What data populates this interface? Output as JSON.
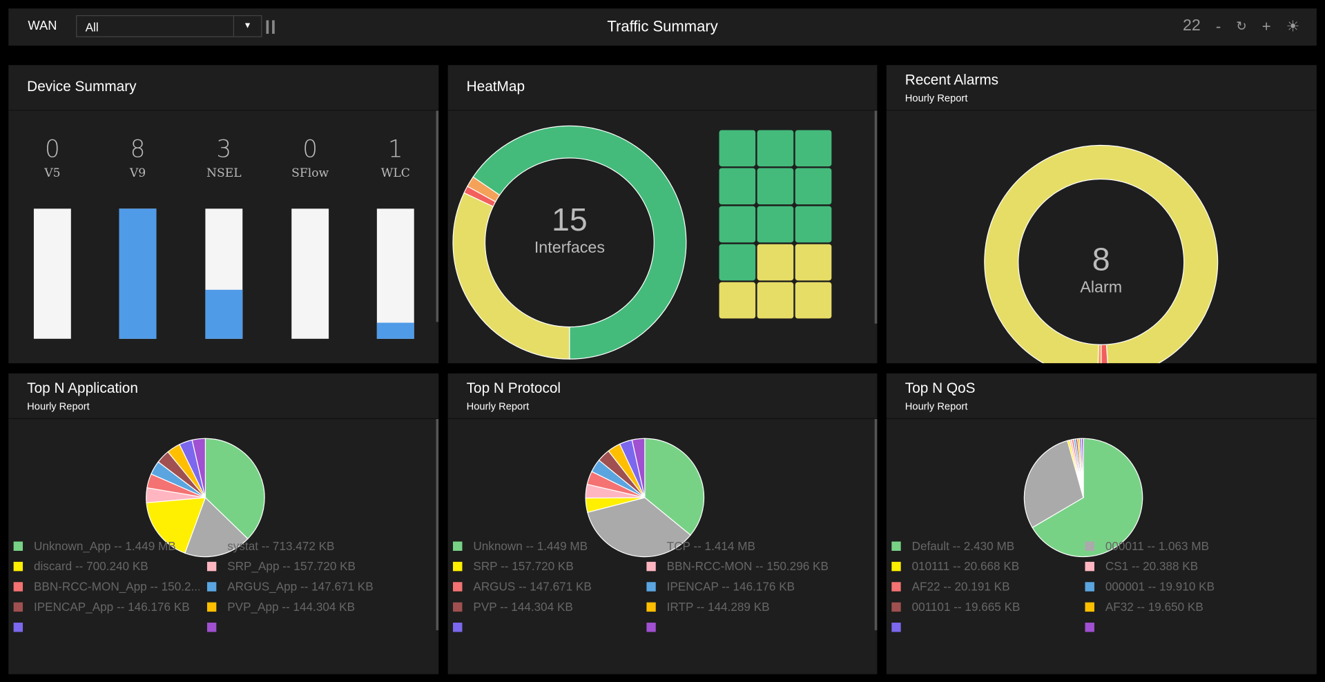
{
  "header": {
    "filter_label": "WAN",
    "filter_value": "All",
    "title": "Traffic Summary",
    "refresh_interval": "22",
    "minus": "-",
    "plus": "+"
  },
  "device_summary": {
    "title": "Device Summary",
    "items": [
      {
        "label": "V5",
        "count": "0",
        "fill": 0
      },
      {
        "label": "V9",
        "count": "8",
        "fill": 1
      },
      {
        "label": "NSEL",
        "count": "3",
        "fill": 0.375
      },
      {
        "label": "SFlow",
        "count": "0",
        "fill": 0
      },
      {
        "label": "WLC",
        "count": "1",
        "fill": 0.125
      }
    ]
  },
  "heatmap": {
    "title": "HeatMap",
    "count": "15",
    "count_label": "Interfaces",
    "donut": [
      {
        "status": "yellow",
        "fraction": 0.32,
        "color": "#e6dd66"
      },
      {
        "status": "red",
        "fraction": 0.01,
        "color": "#f25f5c"
      },
      {
        "status": "orange",
        "fraction": 0.015,
        "color": "#f4a259"
      },
      {
        "status": "green",
        "fraction": 0.655,
        "color": "#44bb7b"
      }
    ],
    "cells": [
      "green",
      "green",
      "green",
      "green",
      "green",
      "green",
      "green",
      "green",
      "green",
      "green",
      "yellow",
      "yellow",
      "yellow",
      "yellow",
      "yellow"
    ],
    "colors": {
      "green": "#44bb7b",
      "yellow": "#e6dd66"
    }
  },
  "alarms": {
    "title": "Recent Alarms",
    "subtitle": "Hourly Report",
    "count": "8",
    "count_label": "Alarm",
    "donut": [
      {
        "status": "warning",
        "fraction": 0.985,
        "color": "#e6dd66"
      },
      {
        "status": "critical",
        "fraction": 0.01,
        "color": "#f25f5c"
      },
      {
        "status": "major",
        "fraction": 0.005,
        "color": "#f4a259"
      }
    ]
  },
  "chart_data": [
    {
      "type": "pie",
      "title": "Top N Application",
      "subtitle": "Hourly Report",
      "slices": [
        {
          "label": "Unknown_App -- 1.449 MB",
          "value": 1449,
          "color": "#78d286"
        },
        {
          "label": "systat -- 713.472 KB",
          "value": 713.472,
          "color": "#aaaaaa"
        },
        {
          "label": "discard -- 700.240 KB",
          "value": 700.24,
          "color": "#ffef00"
        },
        {
          "label": "SRP_App -- 157.720 KB",
          "value": 157.72,
          "color": "#ffb6c1"
        },
        {
          "label": "BBN-RCC-MON_App -- 150.2...",
          "value": 150.2,
          "color": "#f47272"
        },
        {
          "label": "ARGUS_App -- 147.671 KB",
          "value": 147.671,
          "color": "#5aa5e0"
        },
        {
          "label": "IPENCAP_App -- 146.176 KB",
          "value": 146.176,
          "color": "#a05050"
        },
        {
          "label": "PVP_App -- 144.304 KB",
          "value": 144.304,
          "color": "#ffbf00"
        },
        {
          "label": "",
          "value": 140,
          "color": "#7b68ee"
        },
        {
          "label": "",
          "value": 140,
          "color": "#a050d0"
        }
      ]
    },
    {
      "type": "pie",
      "title": "Top N Protocol",
      "subtitle": "Hourly Report",
      "slices": [
        {
          "label": "Unknown -- 1.449 MB",
          "value": 1449,
          "color": "#78d286"
        },
        {
          "label": "TCP -- 1.414 MB",
          "value": 1414,
          "color": "#aaaaaa"
        },
        {
          "label": "SRP -- 157.720 KB",
          "value": 157.72,
          "color": "#ffef00"
        },
        {
          "label": "BBN-RCC-MON -- 150.296 KB",
          "value": 150.296,
          "color": "#ffb6c1"
        },
        {
          "label": "ARGUS -- 147.671 KB",
          "value": 147.671,
          "color": "#f47272"
        },
        {
          "label": "IPENCAP -- 146.176 KB",
          "value": 146.176,
          "color": "#5aa5e0"
        },
        {
          "label": "PVP -- 144.304 KB",
          "value": 144.304,
          "color": "#a05050"
        },
        {
          "label": "IRTP -- 144.289 KB",
          "value": 144.289,
          "color": "#ffbf00"
        },
        {
          "label": "",
          "value": 140,
          "color": "#7b68ee"
        },
        {
          "label": "",
          "value": 140,
          "color": "#a050d0"
        }
      ]
    },
    {
      "type": "pie",
      "title": "Top N QoS",
      "subtitle": "Hourly Report",
      "slices": [
        {
          "label": "Default -- 2.430 MB",
          "value": 2430,
          "color": "#78d286"
        },
        {
          "label": "000011 -- 1.063 MB",
          "value": 1063,
          "color": "#aaaaaa"
        },
        {
          "label": "010111 -- 20.668 KB",
          "value": 20.668,
          "color": "#ffef00"
        },
        {
          "label": "CS1 -- 20.388 KB",
          "value": 20.388,
          "color": "#ffb6c1"
        },
        {
          "label": "AF22 -- 20.191 KB",
          "value": 20.191,
          "color": "#f47272"
        },
        {
          "label": "000001 -- 19.910 KB",
          "value": 19.91,
          "color": "#5aa5e0"
        },
        {
          "label": "001101 -- 19.665 KB",
          "value": 19.665,
          "color": "#a05050"
        },
        {
          "label": "AF32 -- 19.650 KB",
          "value": 19.65,
          "color": "#ffbf00"
        },
        {
          "label": "",
          "value": 19,
          "color": "#7b68ee"
        },
        {
          "label": "",
          "value": 19,
          "color": "#a050d0"
        }
      ]
    }
  ]
}
